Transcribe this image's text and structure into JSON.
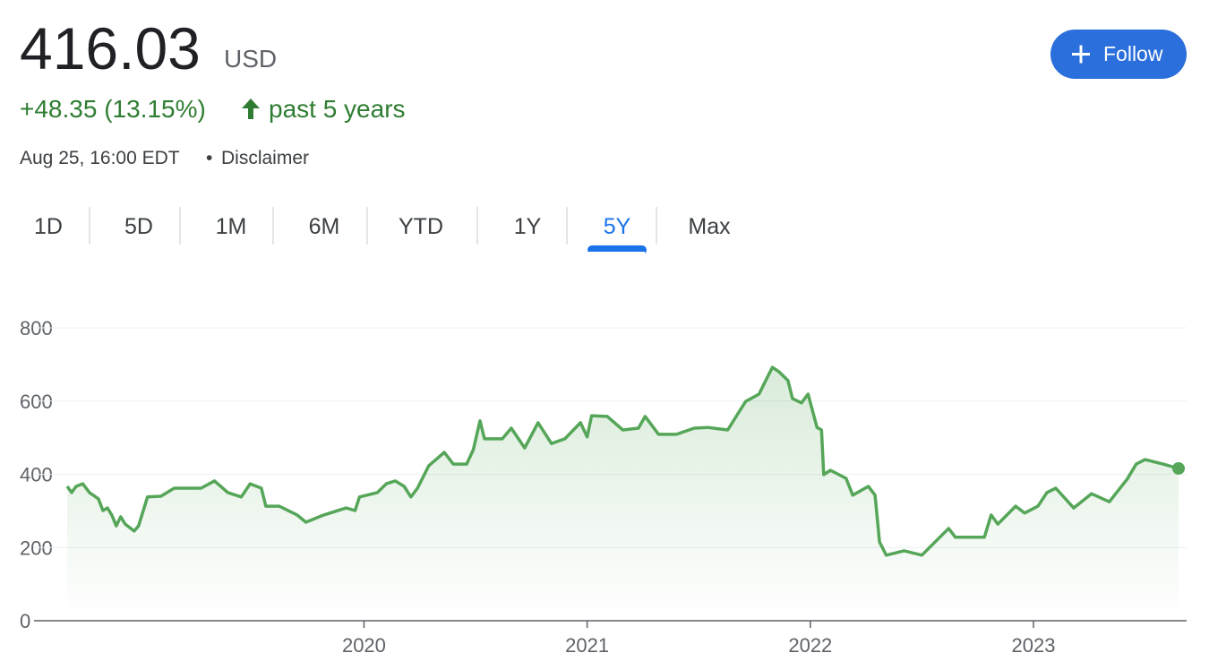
{
  "header": {
    "price": "416.03",
    "currency": "USD",
    "change": "+48.35 (13.15%)",
    "period": "past 5 years",
    "timestamp": "Aug 25, 16:00 EDT",
    "separator": "•",
    "disclaimer": "Disclaimer"
  },
  "follow_button": "Follow",
  "tabs": {
    "items": [
      "1D",
      "5D",
      "1M",
      "6M",
      "YTD",
      "1Y",
      "5Y",
      "Max"
    ],
    "selected": "5Y"
  },
  "chart_data": {
    "type": "line",
    "x": [
      2018.67,
      2018.69,
      2018.71,
      2018.74,
      2018.77,
      2018.81,
      2018.83,
      2018.85,
      2018.87,
      2018.89,
      2018.91,
      2018.93,
      2018.97,
      2018.99,
      2019.03,
      2019.09,
      2019.15,
      2019.21,
      2019.27,
      2019.33,
      2019.39,
      2019.45,
      2019.49,
      2019.54,
      2019.56,
      2019.62,
      2019.7,
      2019.74,
      2019.82,
      2019.92,
      2019.96,
      2019.98,
      2020.06,
      2020.1,
      2020.14,
      2020.18,
      2020.21,
      2020.24,
      2020.29,
      2020.36,
      2020.4,
      2020.46,
      2020.49,
      2020.52,
      2020.54,
      2020.62,
      2020.66,
      2020.72,
      2020.78,
      2020.84,
      2020.9,
      2020.97,
      2021.0,
      2021.02,
      2021.09,
      2021.16,
      2021.23,
      2021.26,
      2021.32,
      2021.4,
      2021.48,
      2021.54,
      2021.63,
      2021.68,
      2021.71,
      2021.77,
      2021.8,
      2021.83,
      2021.86,
      2021.9,
      2021.92,
      2021.96,
      2021.99,
      2022.03,
      2022.05,
      2022.06,
      2022.09,
      2022.16,
      2022.19,
      2022.26,
      2022.29,
      2022.31,
      2022.34,
      2022.42,
      2022.5,
      2022.58,
      2022.62,
      2022.65,
      2022.74,
      2022.78,
      2022.81,
      2022.84,
      2022.92,
      2022.96,
      2023.02,
      2023.06,
      2023.1,
      2023.18,
      2023.26,
      2023.34,
      2023.42,
      2023.46,
      2023.5,
      2023.58,
      2023.65
    ],
    "series": [
      {
        "color": "#55a658",
        "values": [
          367,
          350,
          367,
          374,
          350,
          333,
          301,
          308,
          289,
          259,
          284,
          264,
          245,
          259,
          338,
          340,
          362,
          362,
          362,
          382,
          350,
          338,
          374,
          362,
          313,
          313,
          289,
          269,
          289,
          308,
          301,
          338,
          350,
          374,
          382,
          367,
          338,
          362,
          423,
          460,
          428,
          428,
          467,
          546,
          497,
          497,
          526,
          472,
          541,
          484,
          497,
          541,
          502,
          560,
          558,
          521,
          526,
          558,
          509,
          509,
          526,
          528,
          521,
          570,
          599,
          619,
          656,
          692,
          680,
          656,
          607,
          595,
          619,
          528,
          521,
          399,
          411,
          389,
          343,
          367,
          343,
          215,
          179,
          191,
          179,
          228,
          252,
          228,
          228,
          228,
          289,
          264,
          313,
          294,
          313,
          350,
          362,
          308,
          347,
          325,
          387,
          428,
          440,
          428,
          416
        ]
      }
    ],
    "xlim": [
      2018.67,
      2023.65
    ],
    "xticks": [
      2020,
      2021,
      2022,
      2023
    ],
    "ylim": [
      0,
      800
    ],
    "yticks": [
      0,
      200,
      400,
      600,
      800
    ],
    "grid": true
  }
}
